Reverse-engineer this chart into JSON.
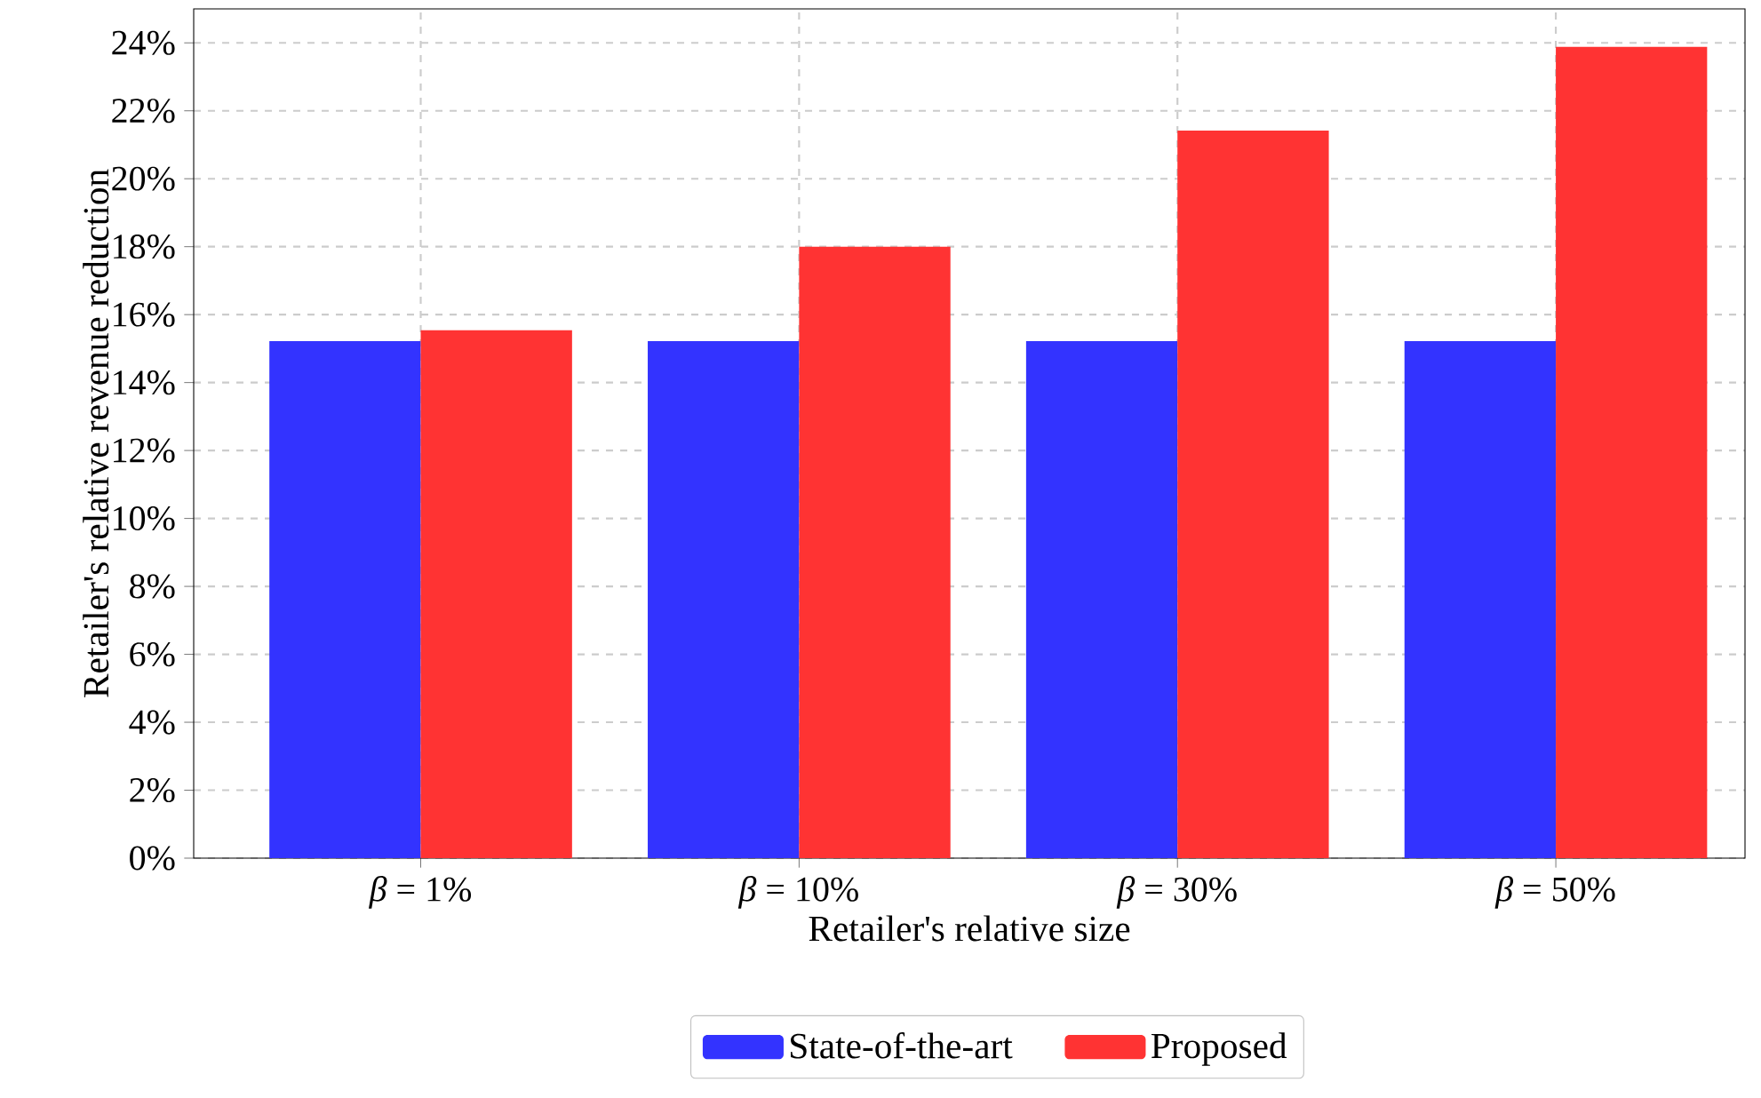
{
  "chart_data": {
    "type": "bar",
    "xlabel": "Retailer's relative size",
    "ylabel": "Retailer's relative revenue reduction",
    "categories": [
      "*β* = 1%",
      "*β* = 10%",
      "*β* = 30%",
      "*β* = 50%"
    ],
    "series": [
      {
        "name": "State-of-the-art",
        "color": "#3333ff",
        "values": [
          15.22,
          15.22,
          15.22,
          15.22
        ]
      },
      {
        "name": "Proposed",
        "color": "#ff3333",
        "values": [
          15.54,
          18.0,
          21.42,
          23.88
        ]
      }
    ],
    "ylim": [
      0,
      25
    ],
    "yticks": [
      {
        "value": 0,
        "label": "0%"
      },
      {
        "value": 2,
        "label": "2%"
      },
      {
        "value": 4,
        "label": "4%"
      },
      {
        "value": 6,
        "label": "6%"
      },
      {
        "value": 8,
        "label": "8%"
      },
      {
        "value": 10,
        "label": "10%"
      },
      {
        "value": 12,
        "label": "12%"
      },
      {
        "value": 14,
        "label": "14%"
      },
      {
        "value": 16,
        "label": "16%"
      },
      {
        "value": 18,
        "label": "18%"
      },
      {
        "value": 20,
        "label": "20%"
      },
      {
        "value": 22,
        "label": "22%"
      },
      {
        "value": 24,
        "label": "24%"
      }
    ],
    "grid": true,
    "legend": "bottom"
  }
}
